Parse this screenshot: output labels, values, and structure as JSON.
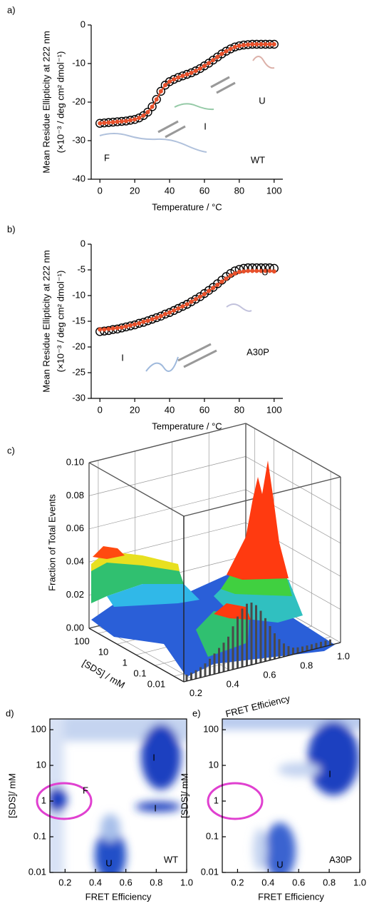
{
  "chart_data": [
    {
      "type": "line",
      "label": "a)",
      "ylabel": "Mean Residue Ellipticity at 222 nm",
      "ylabel2": "(×10⁻³ / deg cm² dmol⁻¹)",
      "xlabel": "Temperature / °C",
      "x": [
        0,
        2.5,
        5,
        7.5,
        10,
        12.5,
        15,
        17.5,
        20,
        22.5,
        25,
        27.5,
        30,
        32.5,
        35,
        37.5,
        40,
        42.5,
        45,
        47.5,
        50,
        52.5,
        55,
        57.5,
        60,
        62.5,
        65,
        67.5,
        70,
        72.5,
        75,
        77.5,
        80,
        82.5,
        85,
        87.5,
        90,
        92.5,
        95,
        97.5,
        100
      ],
      "series": [
        {
          "color": "#000000",
          "values": [
            -25.5,
            -25.4,
            -25.3,
            -25.2,
            -25.1,
            -25.0,
            -24.9,
            -24.7,
            -24.5,
            -24.1,
            -23.5,
            -22.6,
            -21.2,
            -19.3,
            -17.2,
            -15.6,
            -14.7,
            -14.1,
            -13.6,
            -13.2,
            -12.8,
            -12.4,
            -11.9,
            -11.3,
            -10.6,
            -9.9,
            -9.1,
            -8.3,
            -7.5,
            -6.8,
            -6.2,
            -5.7,
            -5.4,
            -5.2,
            -5.1,
            -5.0,
            -5.0,
            -5.0,
            -5.0,
            -5.0,
            -5.0
          ]
        },
        {
          "color": "#e8502a",
          "values": [
            -25.5,
            -25.4,
            -25.3,
            -25.2,
            -25.1,
            -25.0,
            -24.9,
            -24.7,
            -24.5,
            -24.1,
            -23.5,
            -22.6,
            -21.2,
            -19.3,
            -17.2,
            -15.6,
            -14.7,
            -14.1,
            -13.6,
            -13.2,
            -12.8,
            -12.4,
            -11.9,
            -11.3,
            -10.6,
            -9.9,
            -9.1,
            -8.3,
            -7.5,
            -6.8,
            -6.2,
            -5.7,
            -5.4,
            -5.2,
            -5.1,
            -5.0,
            -5.0,
            -5.0,
            -5.0,
            -5.0,
            -5.0
          ]
        }
      ],
      "xlim": [
        -5,
        105
      ],
      "ylim": [
        -40,
        0
      ],
      "xticks": [
        0,
        20,
        40,
        60,
        80,
        100
      ],
      "yticks": [
        -40,
        -30,
        -20,
        -10,
        0
      ],
      "annotations": [
        "F",
        "I",
        "U",
        "WT"
      ]
    },
    {
      "type": "line",
      "label": "b)",
      "ylabel": "Mean Residue Ellipticity at 222 nm",
      "ylabel2": "(×10⁻³ / deg cm² dmol⁻¹)",
      "xlabel": "Temperature / °C",
      "x": [
        0,
        2.5,
        5,
        7.5,
        10,
        12.5,
        15,
        17.5,
        20,
        22.5,
        25,
        27.5,
        30,
        32.5,
        35,
        37.5,
        40,
        42.5,
        45,
        47.5,
        50,
        52.5,
        55,
        57.5,
        60,
        62.5,
        65,
        67.5,
        70,
        72.5,
        75,
        77.5,
        80,
        82.5,
        85,
        87.5,
        90,
        92.5,
        95,
        97.5,
        100
      ],
      "series": [
        {
          "color": "#000000",
          "values": [
            -17,
            -16.9,
            -16.8,
            -16.6,
            -16.5,
            -16.3,
            -16.1,
            -15.9,
            -15.7,
            -15.4,
            -15.2,
            -14.9,
            -14.6,
            -14.3,
            -14.0,
            -13.6,
            -13.3,
            -12.9,
            -12.5,
            -12.1,
            -11.7,
            -11.2,
            -10.7,
            -10.2,
            -9.6,
            -9.0,
            -8.4,
            -7.7,
            -7.0,
            -6.3,
            -5.7,
            -5.2,
            -4.9,
            -4.7,
            -4.6,
            -4.6,
            -4.6,
            -4.6,
            -4.6,
            -4.6,
            -4.7
          ]
        },
        {
          "color": "#e8502a",
          "values": [
            -16.6,
            -16.6,
            -16.5,
            -16.4,
            -16.3,
            -16.2,
            -16.0,
            -15.8,
            -15.6,
            -15.4,
            -15.1,
            -14.9,
            -14.6,
            -14.3,
            -14.0,
            -13.6,
            -13.3,
            -12.9,
            -12.5,
            -12.1,
            -11.7,
            -11.2,
            -10.7,
            -10.2,
            -9.7,
            -9.1,
            -8.5,
            -7.9,
            -7.3,
            -6.7,
            -6.1,
            -5.7,
            -5.4,
            -5.3,
            -5.2,
            -5.2,
            -5.2,
            -5.2,
            -5.2,
            -5.2,
            -5.3
          ]
        }
      ],
      "xlim": [
        -5,
        105
      ],
      "ylim": [
        -30,
        0
      ],
      "xticks": [
        0,
        20,
        40,
        60,
        80,
        100
      ],
      "yticks": [
        -30,
        -25,
        -20,
        -15,
        -10,
        -5,
        0
      ],
      "annotations": [
        "I",
        "U",
        "A30P"
      ]
    },
    {
      "type": "surface3d",
      "label": "c)",
      "zlabel": "Fraction of Total Events",
      "ylabel": "[SDS] / mM",
      "xlabel": "FRET Efficiency",
      "zlim": [
        0,
        0.1
      ],
      "zticks": [
        {
          "value": 0,
          "label": "0.00"
        },
        {
          "value": 0.02,
          "label": "0.02"
        },
        {
          "value": 0.04,
          "label": "0.04"
        },
        {
          "value": 0.06,
          "label": "0.06"
        },
        {
          "value": 0.08,
          "label": "0.08"
        },
        {
          "value": 0.1,
          "label": "0.10"
        }
      ],
      "ylim": [
        0.003,
        300
      ],
      "ylog": true,
      "yticks": [
        100,
        10,
        1,
        0.1,
        0.01
      ],
      "xlim": [
        0.15,
        1.0
      ],
      "xticks": [
        0.2,
        0.4,
        0.6,
        0.8,
        {
          "value": 1,
          "label": "1.0"
        }
      ]
    },
    {
      "type": "heatmap",
      "label": "d)",
      "ylabel": "[SDS]/ mM",
      "xlabel": "FRET Efficiency",
      "xlim": [
        0.1,
        1.0
      ],
      "xticks": [
        0.2,
        0.4,
        0.6,
        0.8,
        {
          "value": 1,
          "label": "1.0"
        }
      ],
      "ylim": [
        0.01,
        200
      ],
      "ylog": true,
      "yticks": [
        0.01,
        0.1,
        1,
        10,
        100
      ],
      "annotations": [
        "I",
        "I",
        "F",
        "U",
        "WT"
      ]
    },
    {
      "type": "heatmap",
      "label": "e)",
      "ylabel": "[SDS]/ mM",
      "xlabel": "FRET Efficiency",
      "xlim": [
        0.1,
        1.0
      ],
      "xticks": [
        0.2,
        0.4,
        0.6,
        0.8,
        {
          "value": 1,
          "label": "1.0"
        }
      ],
      "ylim": [
        0.01,
        200
      ],
      "ylog": true,
      "yticks": [
        0.01,
        0.1,
        1,
        10,
        100
      ],
      "annotations": [
        "I",
        "U",
        "A30P"
      ]
    }
  ]
}
